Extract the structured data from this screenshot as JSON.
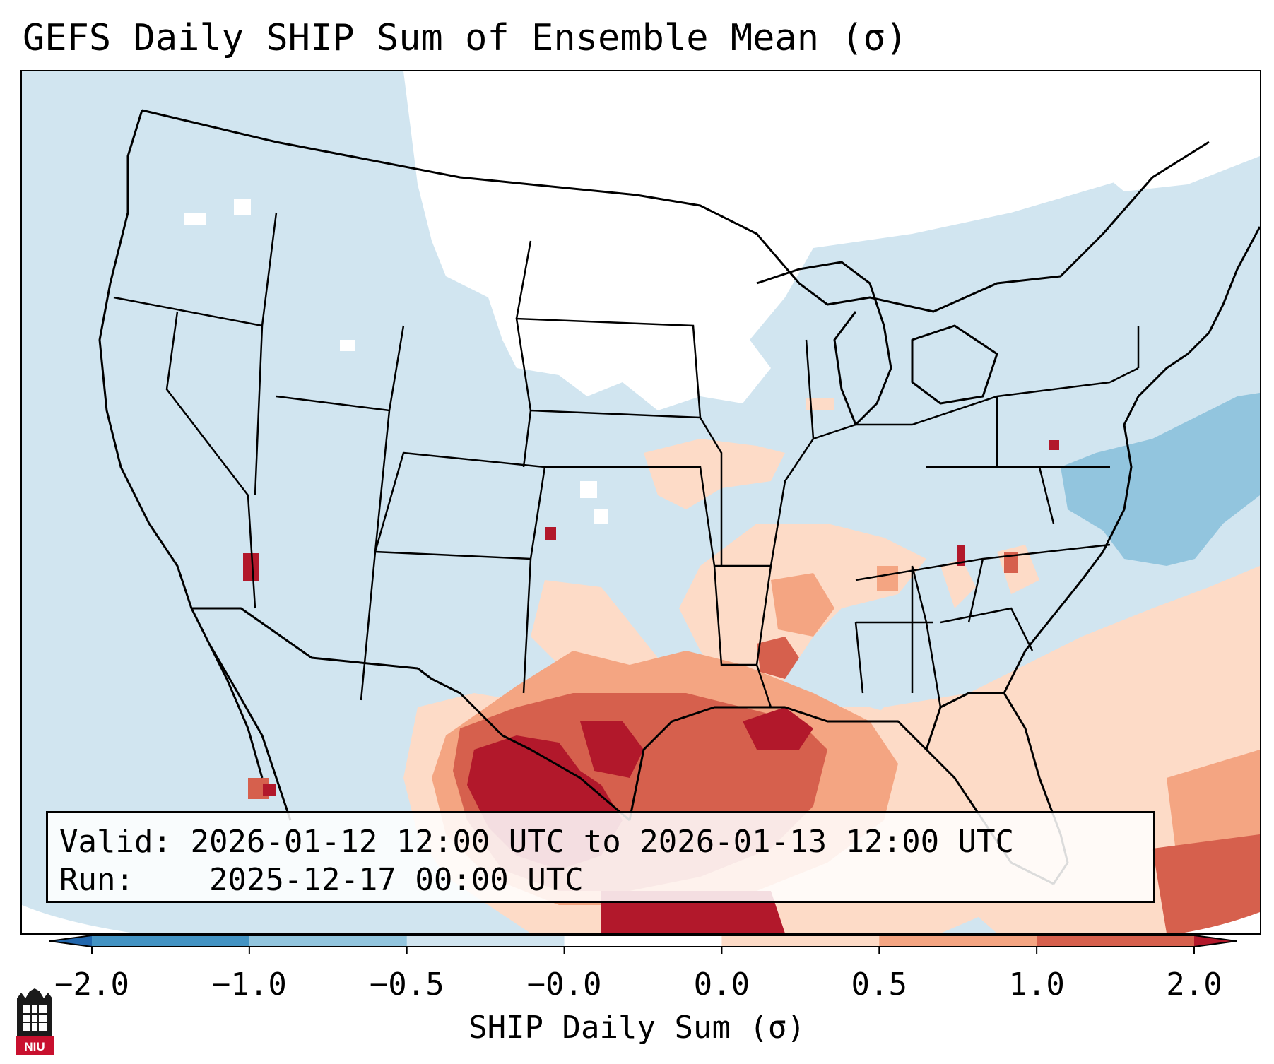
{
  "title": "GEFS Daily SHIP Sum of Ensemble Mean (σ)",
  "info": {
    "valid_label": "Valid:",
    "valid_value": "2026-01-12 12:00 UTC to 2026-01-13 12:00 UTC",
    "run_label": "Run:",
    "run_value": "2025-12-17 00:00 UTC"
  },
  "colorbar": {
    "label": "SHIP Daily Sum (σ)",
    "tick_labels": [
      "−2.0",
      "−1.0",
      "−0.5",
      "−0.0",
      "0.0",
      "0.5",
      "1.0",
      "2.0"
    ],
    "bins": [
      {
        "range": "< -2.0",
        "color": "#2166ac"
      },
      {
        "range": "-2.0 to -1.0",
        "color": "#4393c3"
      },
      {
        "range": "-1.0 to -0.5",
        "color": "#92c5de"
      },
      {
        "range": "-0.5 to -0.0",
        "color": "#d1e5f0"
      },
      {
        "range": "-0.0 to 0.0",
        "color": "#ffffff"
      },
      {
        "range": "0.0 to 0.5",
        "color": "#fddbc7"
      },
      {
        "range": "0.5 to 1.0",
        "color": "#f4a582"
      },
      {
        "range": "1.0 to 2.0",
        "color": "#d6604d"
      },
      {
        "range": "> 2.0",
        "color": "#b2182b"
      }
    ]
  },
  "map": {
    "domain": "Continental United States",
    "field": "SHIP daily sum, ensemble mean",
    "highlight_regions": [
      {
        "name": "South Texas / western Gulf Coast",
        "level": "> 2.0"
      },
      {
        "name": "Louisiana coast",
        "level": "1.0 to 2.0"
      },
      {
        "name": "Gulf of Mexico",
        "level": "0.5 to 2.0"
      },
      {
        "name": "Western Atlantic",
        "level": "0.0 to 0.5"
      },
      {
        "name": "Upper Midwest / northern Plains",
        "level": "-0.0 to 0.0"
      }
    ]
  },
  "logo": {
    "text": "NIU",
    "color": "#c8102e"
  }
}
